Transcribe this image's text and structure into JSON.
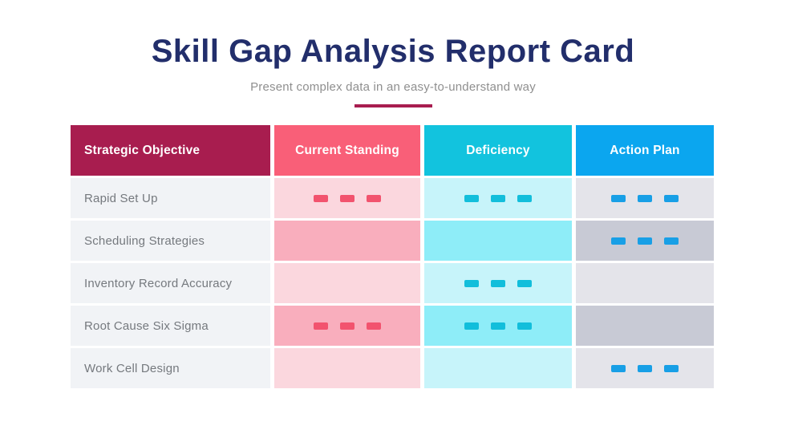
{
  "slide": {
    "title": "Skill Gap Analysis Report Card",
    "subtitle": "Present complex data in an easy-to-understand way"
  },
  "table": {
    "columns": [
      {
        "key": "objective",
        "label": "Strategic Objective",
        "header_color": "#A81D4F"
      },
      {
        "key": "current",
        "label": "Current Standing",
        "header_color": "#F95F78"
      },
      {
        "key": "deficiency",
        "label": "Deficiency",
        "header_color": "#12C3DE"
      },
      {
        "key": "action",
        "label": "Action Plan",
        "header_color": "#0BA6EF"
      }
    ],
    "rows": [
      {
        "objective": "Rapid Set Up",
        "current": {
          "shade": "light",
          "dashes": true
        },
        "deficiency": {
          "shade": "light",
          "dashes": true
        },
        "action": {
          "shade": "light",
          "dashes": true
        }
      },
      {
        "objective": "Scheduling Strategies",
        "current": {
          "shade": "medium",
          "dashes": false
        },
        "deficiency": {
          "shade": "medium",
          "dashes": false
        },
        "action": {
          "shade": "medium",
          "dashes": true
        }
      },
      {
        "objective": "Inventory Record Accuracy",
        "current": {
          "shade": "light",
          "dashes": false
        },
        "deficiency": {
          "shade": "light",
          "dashes": true
        },
        "action": {
          "shade": "light",
          "dashes": false
        }
      },
      {
        "objective": "Root Cause Six Sigma",
        "current": {
          "shade": "medium",
          "dashes": true
        },
        "deficiency": {
          "shade": "medium",
          "dashes": true
        },
        "action": {
          "shade": "medium",
          "dashes": false
        }
      },
      {
        "objective": "Work Cell Design",
        "current": {
          "shade": "light",
          "dashes": false
        },
        "deficiency": {
          "shade": "light",
          "dashes": false
        },
        "action": {
          "shade": "light",
          "dashes": true
        }
      }
    ],
    "dashes_per_cell": 3
  },
  "colors": {
    "title_text": "#222E6B",
    "subtitle_text": "#8F8F8F",
    "divider": "#A81D4F",
    "header_text": "#FFFFFF",
    "objective_cell_bg": "#F1F3F6",
    "row_label_text": "#75797E",
    "current_light": "#FBD7DE",
    "current_medium": "#F9AEBD",
    "current_dash": "#F2536E",
    "deficiency_light": "#C7F4FA",
    "deficiency_medium": "#8EEDF8",
    "deficiency_dash": "#12BEDB",
    "action_light": "#E4E4EA",
    "action_medium": "#C8CAD5",
    "action_dash": "#189FE6"
  },
  "chart_data": {
    "type": "table",
    "title": "Skill Gap Analysis Report Card",
    "subtitle": "Present complex data in an easy-to-understand way",
    "columns": [
      "Strategic Objective",
      "Current Standing",
      "Deficiency",
      "Action Plan"
    ],
    "rows": [
      {
        "strategic_objective": "Rapid Set Up",
        "current_standing": "dash-marks",
        "deficiency": "dash-marks",
        "action_plan": "dash-marks"
      },
      {
        "strategic_objective": "Scheduling Strategies",
        "current_standing": "",
        "deficiency": "",
        "action_plan": "dash-marks"
      },
      {
        "strategic_objective": "Inventory Record Accuracy",
        "current_standing": "",
        "deficiency": "dash-marks",
        "action_plan": ""
      },
      {
        "strategic_objective": "Root Cause Six Sigma",
        "current_standing": "dash-marks",
        "deficiency": "dash-marks",
        "action_plan": ""
      },
      {
        "strategic_objective": "Work Cell Design",
        "current_standing": "",
        "deficiency": "",
        "action_plan": "dash-marks"
      }
    ],
    "legend_position": "none",
    "grid": false,
    "notes": "Cells contain placeholder dash bars (3 per filled cell), no numeric values are shown"
  }
}
